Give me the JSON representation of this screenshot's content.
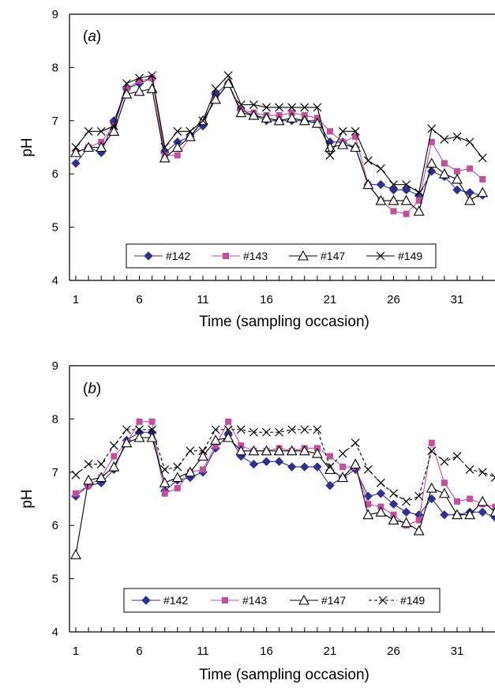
{
  "chart_data": [
    {
      "type": "line",
      "panel_label": "(a)",
      "ylabel": "pH",
      "xlabel": "Time (sampling occasion)",
      "ylim": [
        4,
        9
      ],
      "y_ticks": [
        "4",
        "5",
        "6",
        "7",
        "8",
        "9"
      ],
      "xlim": [
        0.5,
        34
      ],
      "x_ticks": [
        "1",
        "6",
        "11",
        "16",
        "21",
        "26",
        "31"
      ],
      "legend_position": "bottom-center, inside plot",
      "grid": false,
      "series": [
        {
          "name": "#142",
          "color": "#2e3192",
          "marker": "diamond",
          "values": [
            6.2,
            6.5,
            6.4,
            7.0,
            7.6,
            7.7,
            7.8,
            6.4,
            6.6,
            6.7,
            6.9,
            7.5,
            7.7,
            7.2,
            7.1,
            7.0,
            7.0,
            7.0,
            7.0,
            7.0,
            6.6,
            6.6,
            6.5,
            5.8,
            5.8,
            5.7,
            5.7,
            5.6,
            6.05,
            5.95,
            5.7,
            5.65,
            5.6
          ]
        },
        {
          "name": "#143",
          "color": "#c44f9e",
          "marker": "square",
          "values": [
            6.4,
            6.5,
            6.6,
            6.9,
            7.6,
            7.75,
            7.8,
            6.35,
            6.35,
            6.7,
            7.0,
            7.4,
            7.7,
            7.2,
            7.15,
            7.1,
            7.1,
            7.15,
            7.1,
            7.05,
            6.8,
            6.6,
            6.7,
            5.8,
            5.5,
            5.3,
            5.25,
            5.5,
            6.6,
            6.2,
            6.05,
            6.1,
            5.9
          ]
        },
        {
          "name": "#147",
          "color": "#000000",
          "marker": "triangle",
          "values": [
            6.4,
            6.5,
            6.5,
            6.8,
            7.5,
            7.55,
            7.6,
            6.3,
            6.5,
            6.7,
            7.0,
            7.4,
            7.7,
            7.15,
            7.1,
            7.05,
            7.0,
            7.05,
            7.0,
            6.95,
            6.5,
            6.55,
            6.5,
            5.8,
            5.5,
            5.5,
            5.5,
            5.3,
            6.2,
            6.0,
            5.9,
            5.5,
            5.65
          ]
        },
        {
          "name": "#149",
          "color": "#000000",
          "marker": "x",
          "values": [
            6.5,
            6.8,
            6.8,
            6.9,
            7.7,
            7.8,
            7.85,
            6.5,
            6.8,
            6.8,
            7.0,
            7.6,
            7.85,
            7.3,
            7.3,
            7.25,
            7.25,
            7.25,
            7.25,
            7.25,
            6.35,
            6.8,
            6.8,
            6.25,
            6.1,
            5.8,
            5.8,
            5.65,
            6.85,
            6.65,
            6.7,
            6.6,
            6.3
          ]
        }
      ]
    },
    {
      "type": "line",
      "panel_label": "(b)",
      "ylabel": "pH",
      "xlabel": "Time (sampling occasion)",
      "ylim": [
        4,
        9
      ],
      "y_ticks": [
        "4",
        "5",
        "6",
        "7",
        "8",
        "9"
      ],
      "xlim": [
        0.5,
        34
      ],
      "x_ticks": [
        "1",
        "6",
        "11",
        "16",
        "21",
        "26",
        "31"
      ],
      "legend_position": "bottom-center, inside plot",
      "grid": false,
      "series": [
        {
          "name": "#142",
          "color": "#2e3192",
          "marker": "diamond",
          "values": [
            6.55,
            6.75,
            6.8,
            7.05,
            7.6,
            7.75,
            7.75,
            6.65,
            6.85,
            6.9,
            7.0,
            7.45,
            7.7,
            7.3,
            7.15,
            7.2,
            7.2,
            7.1,
            7.1,
            7.1,
            6.75,
            6.9,
            7.05,
            6.55,
            6.6,
            6.4,
            6.25,
            6.2,
            6.5,
            6.2,
            6.2,
            6.25,
            6.25,
            6.15
          ]
        },
        {
          "name": "#143",
          "color": "#c44f9e",
          "marker": "square",
          "values": [
            6.6,
            6.75,
            6.9,
            7.3,
            7.55,
            7.95,
            7.95,
            6.6,
            6.7,
            7.0,
            7.05,
            7.5,
            7.95,
            7.5,
            7.4,
            7.4,
            7.45,
            7.4,
            7.45,
            7.45,
            7.3,
            7.1,
            7.1,
            6.4,
            6.35,
            6.2,
            6.0,
            6.1,
            7.55,
            6.8,
            6.45,
            6.5,
            6.4,
            6.35
          ]
        },
        {
          "name": "#147",
          "color": "#000000",
          "marker": "triangle",
          "values": [
            5.45,
            6.85,
            6.9,
            7.1,
            7.55,
            7.65,
            7.65,
            6.8,
            6.9,
            7.0,
            7.3,
            7.6,
            7.65,
            7.4,
            7.4,
            7.4,
            7.4,
            7.4,
            7.4,
            7.35,
            7.05,
            6.9,
            7.15,
            6.2,
            6.25,
            6.1,
            6.05,
            5.9,
            6.7,
            6.6,
            6.2,
            6.2,
            6.45,
            6.25
          ]
        },
        {
          "name": "#149",
          "color": "#000000",
          "marker": "x",
          "values": [
            6.95,
            7.15,
            7.15,
            7.5,
            7.8,
            7.8,
            7.8,
            7.05,
            7.1,
            7.4,
            7.4,
            7.8,
            7.8,
            7.8,
            7.75,
            7.75,
            7.75,
            7.8,
            7.8,
            7.8,
            7.1,
            7.35,
            7.55,
            7.05,
            6.8,
            6.6,
            6.45,
            6.55,
            7.4,
            7.2,
            7.3,
            7.05,
            7.0,
            6.9
          ]
        }
      ]
    }
  ]
}
